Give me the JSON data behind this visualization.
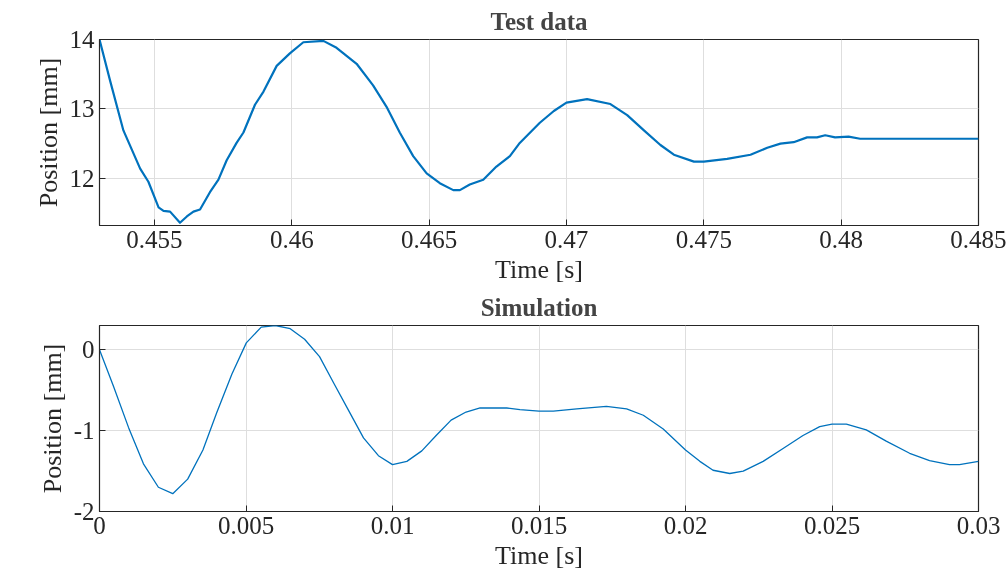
{
  "chart_data": [
    {
      "type": "line",
      "title": "Test data",
      "xlabel": "Time [s]",
      "ylabel": "Position [mm]",
      "xlim": [
        0.453,
        0.485
      ],
      "xticks": [
        0.455,
        0.46,
        0.465,
        0.47,
        0.475,
        0.48,
        0.485
      ],
      "ylim": [
        11.32,
        14
      ],
      "yticks": [
        12,
        13,
        14
      ],
      "grid": true,
      "marker": "none",
      "line_style": "solid",
      "series": [
        {
          "color": "#0072bd",
          "x": [
            0.453,
            0.45339,
            0.45387,
            0.45448,
            0.45478,
            0.45515,
            0.45533,
            0.45557,
            0.45593,
            0.45618,
            0.45642,
            0.45666,
            0.45702,
            0.45733,
            0.45763,
            0.45799,
            0.45824,
            0.45866,
            0.45897,
            0.45945,
            0.45993,
            0.46042,
            0.46115,
            0.46163,
            0.46236,
            0.46296,
            0.46345,
            0.46393,
            0.46442,
            0.46491,
            0.46539,
            0.46588,
            0.46612,
            0.46648,
            0.46697,
            0.46745,
            0.46794,
            0.4683,
            0.46903,
            0.46954,
            0.47,
            0.47075,
            0.4716,
            0.47221,
            0.47282,
            0.47342,
            0.47391,
            0.47464,
            0.475,
            0.47585,
            0.4767,
            0.47731,
            0.47779,
            0.47827,
            0.47876,
            0.47912,
            0.47942,
            0.47978,
            0.48027,
            0.48069,
            0.48166,
            0.485
          ],
          "values": [
            14.0,
            13.4,
            12.69,
            12.14,
            11.95,
            11.58,
            11.53,
            11.52,
            11.36,
            11.45,
            11.52,
            11.55,
            11.8,
            11.98,
            12.26,
            12.51,
            12.66,
            13.06,
            13.25,
            13.62,
            13.8,
            13.96,
            13.98,
            13.88,
            13.65,
            13.34,
            13.03,
            12.66,
            12.32,
            12.07,
            11.93,
            11.83,
            11.83,
            11.91,
            11.98,
            12.17,
            12.32,
            12.51,
            12.8,
            12.97,
            13.09,
            13.14,
            13.07,
            12.91,
            12.69,
            12.48,
            12.34,
            12.24,
            12.24,
            12.28,
            12.34,
            12.44,
            12.5,
            12.52,
            12.59,
            12.59,
            12.62,
            12.59,
            12.6,
            12.57,
            12.57,
            12.57
          ]
        }
      ]
    },
    {
      "type": "line",
      "title": "Simulation",
      "xlabel": "Time [s]",
      "ylabel": "Position [mm]",
      "xlim": [
        0,
        0.03
      ],
      "xticks": [
        0,
        0.005,
        0.01,
        0.015,
        0.02,
        0.025,
        0.03
      ],
      "ylim": [
        -2,
        0.3
      ],
      "yticks": [
        -2,
        -1,
        0
      ],
      "grid": true,
      "marker": "none",
      "line_style": "solid",
      "series": [
        {
          "color": "#0072bd",
          "x": [
            0,
            0.00048,
            0.00099,
            0.0015,
            0.00201,
            0.0025,
            0.00301,
            0.00353,
            0.004,
            0.00452,
            0.00501,
            0.00552,
            0.006,
            0.00651,
            0.007,
            0.00751,
            0.00802,
            0.0085,
            0.00901,
            0.00952,
            0.01,
            0.01049,
            0.011,
            0.01149,
            0.012,
            0.01251,
            0.01299,
            0.0139,
            0.01435,
            0.015,
            0.01549,
            0.01629,
            0.0173,
            0.01799,
            0.01856,
            0.01924,
            0.02,
            0.02049,
            0.02094,
            0.02151,
            0.02197,
            0.02265,
            0.02333,
            0.02401,
            0.02458,
            0.025,
            0.02549,
            0.02617,
            0.02685,
            0.02765,
            0.02833,
            0.02901,
            0.02935,
            0.03
          ],
          "values": [
            0,
            -0.455,
            -0.96,
            -1.41,
            -1.7,
            -1.78,
            -1.6,
            -1.24,
            -0.78,
            -0.3,
            0.085,
            0.28,
            0.3,
            0.26,
            0.13,
            -0.085,
            -0.43,
            -0.75,
            -1.09,
            -1.31,
            -1.42,
            -1.38,
            -1.25,
            -1.06,
            -0.87,
            -0.77,
            -0.72,
            -0.72,
            -0.74,
            -0.76,
            -0.76,
            -0.73,
            -0.7,
            -0.73,
            -0.81,
            -0.98,
            -1.24,
            -1.38,
            -1.49,
            -1.53,
            -1.5,
            -1.38,
            -1.22,
            -1.06,
            -0.95,
            -0.92,
            -0.92,
            -0.99,
            -1.13,
            -1.28,
            -1.37,
            -1.42,
            -1.42,
            -1.38
          ]
        }
      ]
    }
  ]
}
